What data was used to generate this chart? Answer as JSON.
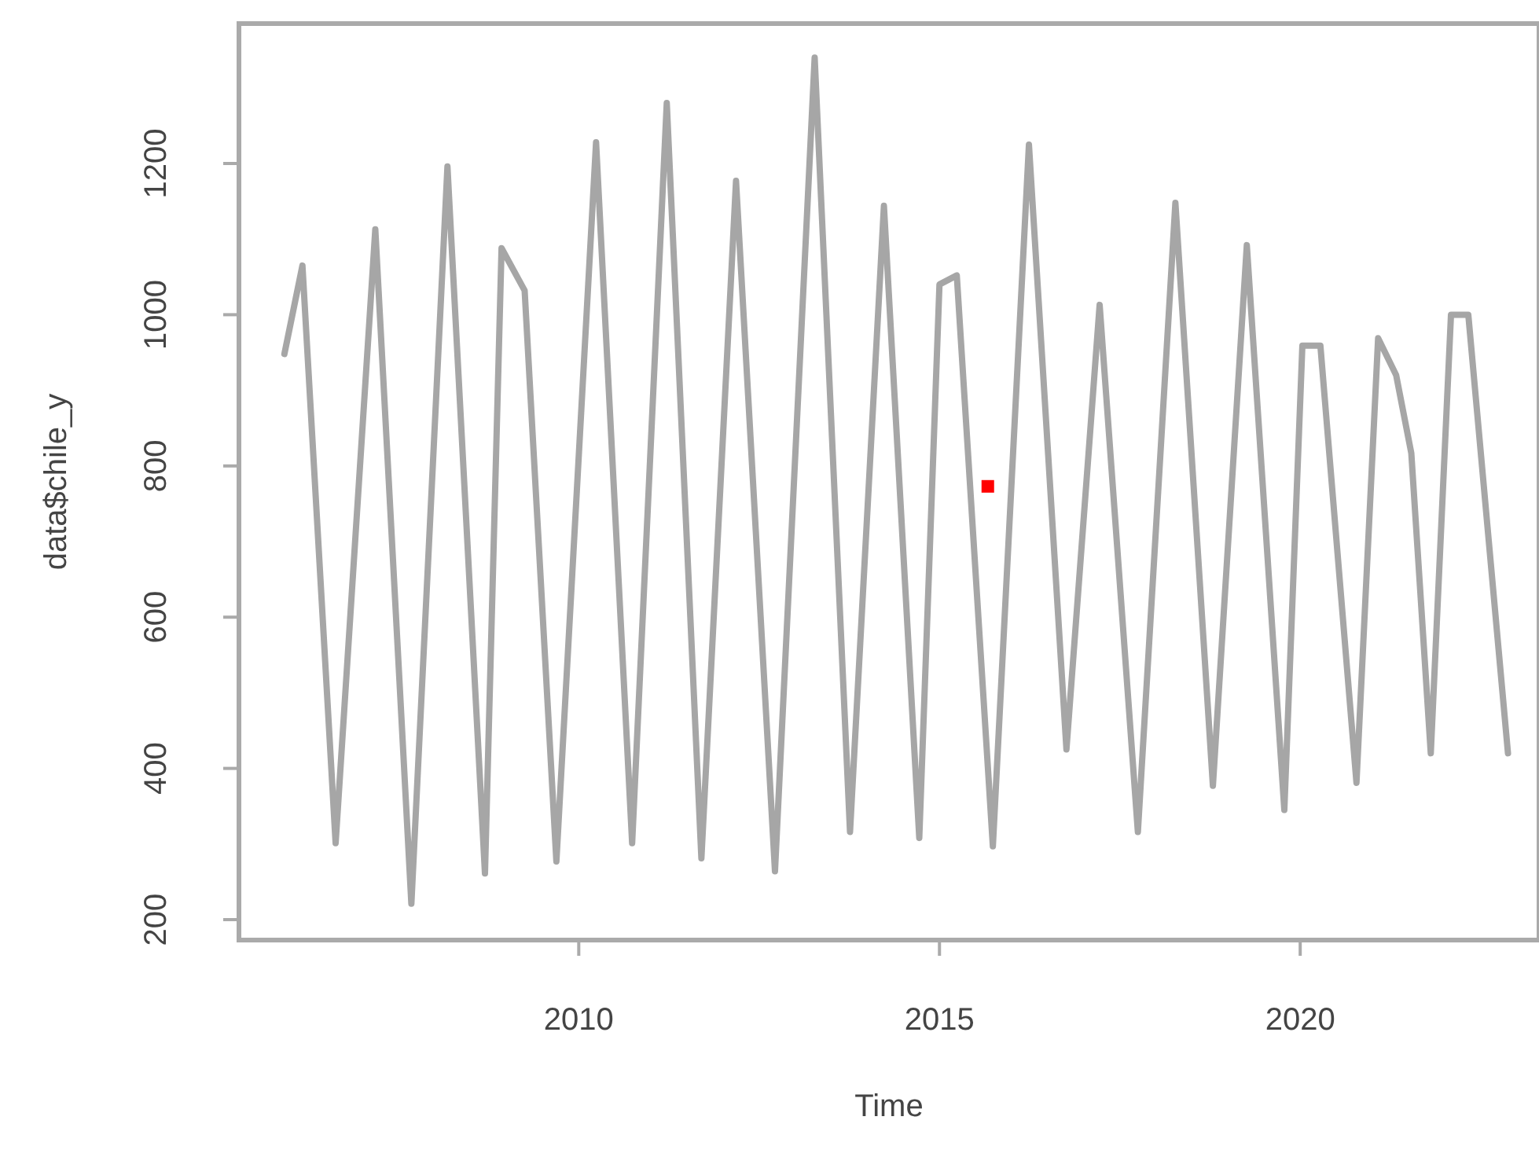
{
  "chart_data": {
    "type": "line",
    "xlabel": "Time",
    "ylabel": "data$chile_y",
    "xlim": [
      2005.29,
      2023.31
    ],
    "ylim": [
      173,
      1385
    ],
    "xticks": [
      2010,
      2015,
      2020
    ],
    "yticks": [
      200,
      400,
      600,
      800,
      1000,
      1200
    ],
    "grid": false,
    "series": [
      {
        "color": "#a6a6a6",
        "marker": "none",
        "x": [
          2005.92,
          2006.17,
          2006.63,
          2007.18,
          2007.68,
          2008.18,
          2008.7,
          2008.93,
          2009.25,
          2009.69,
          2010.24,
          2010.74,
          2011.22,
          2011.7,
          2012.18,
          2012.72,
          2013.27,
          2013.76,
          2014.23,
          2014.72,
          2015.0,
          2015.24,
          2015.74,
          2016.24,
          2016.76,
          2017.22,
          2017.75,
          2018.27,
          2018.79,
          2019.26,
          2019.78,
          2020.03,
          2020.28,
          2020.78,
          2021.08,
          2021.33,
          2021.54,
          2021.81,
          2022.09,
          2022.33,
          2022.88
        ],
        "values": [
          948,
          1065,
          301,
          1113,
          221,
          1196,
          261,
          1088,
          1032,
          277,
          1228,
          301,
          1280,
          281,
          1177,
          264,
          1340,
          316,
          1144,
          308,
          1040,
          1052,
          297,
          1225,
          425,
          1013,
          316,
          1148,
          377,
          1092,
          345,
          959,
          959,
          381,
          969,
          920,
          817,
          420,
          1000,
          1000,
          420
        ]
      },
      {
        "type": "scatter",
        "color": "#ff0000",
        "marker": "square",
        "x": [
          2015.67
        ],
        "values": [
          773
        ]
      }
    ]
  }
}
